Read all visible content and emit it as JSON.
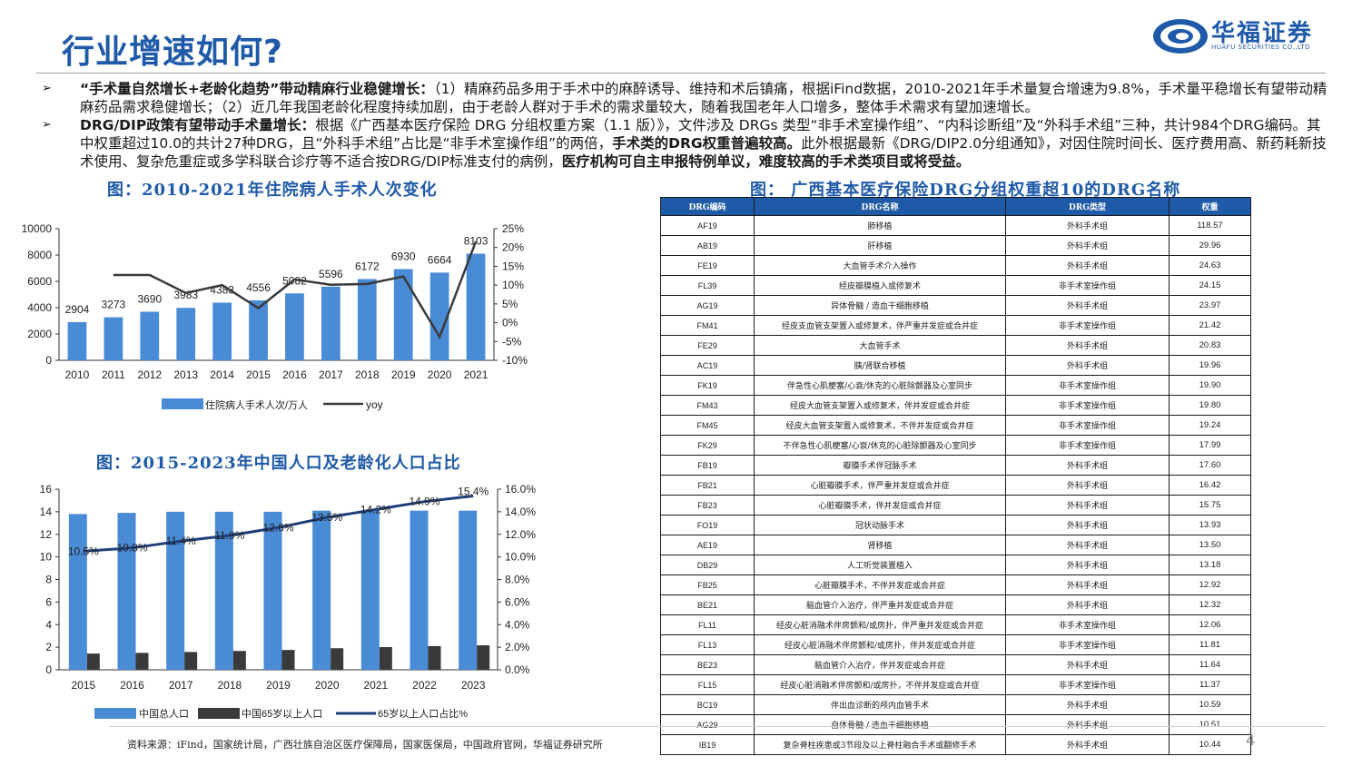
{
  "header": {
    "title": "行业增速如何?",
    "logo_cn": "华福证券",
    "logo_en": "HUAFU SECURITIES CO.,LTD"
  },
  "bullets": [
    {
      "symbol": "➢",
      "bold": "“手术量自然增长+老龄化趋势”带动精麻行业稳健增长：",
      "text": "（1）精麻药品多用于手术中的麻醉诱导、维持和术后镇痛，根据iFind数据，2010-2021年手术量复合增速为9.8%，手术量平稳增长有望带动精麻药品需求稳健增长；（2）近几年我国老龄化程度持续加剧，由于老龄人群对于手术的需求量较大，随着我国老年人口增多，整体手术需求有望加速增长。"
    },
    {
      "symbol": "➢",
      "bold": "DRG/DIP政策有望带动手术量增长：",
      "text1": "根据《广西基本医疗保险 DRG 分组权重方案（1.1 版）》，文件涉及 DRGs 类型“非手术室操作组”、“内科诊断组”及“外科手术组”三种，共计984个DRG编码。其中权重超过10.0的共计27种DRG，且“外科手术组”占比是“非手术室操作组”的两倍，",
      "bold2": "手术类的DRG权重普遍较高。",
      "text2": "此外根据最新《DRG/DIP2.0分组通知》，对因住院时间长、医疗费用高、新药耗新技术使用、复杂危重症或多学科联合诊疗等不适合按DRG/DIP标准支付的病例，",
      "bold3": "医疗机构可自主申报特例单议，难度较高的手术类项目或将受益。"
    }
  ],
  "chart1_title": "图：2010-2021年住院病人手术人次变化",
  "chart2_title": "图：2015-2023年中国人口及老龄化人口占比",
  "table_title": "图： 广西基本医疗保险DRG分组权重超10的DRG名称",
  "source": "资料来源：iFind，国家统计局，广西壮族自治区医疗保障局，国家医保局，中国政府官网，华福证券研究所",
  "page_number": "4",
  "colors": {
    "accent": "#1f5aa8",
    "bar": "#4a8bd6",
    "dark_bar": "#3a3a3a",
    "line": "#1f3f7a"
  },
  "chart_data": [
    {
      "type": "bar",
      "categories": [
        "2010",
        "2011",
        "2012",
        "2013",
        "2014",
        "2015",
        "2016",
        "2017",
        "2018",
        "2019",
        "2020",
        "2021"
      ],
      "series": [
        {
          "name": "住院病人手术人次/万人",
          "values": [
            2904,
            3273,
            3690,
            3983,
            4383,
            4556,
            5082,
            5596,
            6172,
            6930,
            6664,
            8103
          ]
        },
        {
          "name": "yoy",
          "type": "line",
          "axis": "right",
          "values": [
            null,
            12.7,
            12.7,
            7.9,
            10.0,
            3.9,
            11.5,
            10.1,
            10.3,
            12.3,
            -3.8,
            21.6
          ]
        }
      ],
      "left_ticks": [
        "0",
        "2000",
        "4000",
        "6000",
        "8000",
        "10000"
      ],
      "right_ticks": [
        "-10%",
        "-5%",
        "0%",
        "5%",
        "10%",
        "15%",
        "20%",
        "25%"
      ],
      "ylim": [
        0,
        10000
      ],
      "y2lim": [
        -10,
        25
      ],
      "legend_position": "bottom"
    },
    {
      "type": "bar",
      "categories": [
        "2015",
        "2016",
        "2017",
        "2018",
        "2019",
        "2020",
        "2021",
        "2022",
        "2023"
      ],
      "series": [
        {
          "name": "中国总人口",
          "values": [
            13.8,
            13.9,
            14.0,
            14.0,
            14.0,
            14.1,
            14.1,
            14.1,
            14.1
          ]
        },
        {
          "name": "中国65岁以上人口",
          "values": [
            1.44,
            1.5,
            1.58,
            1.67,
            1.76,
            1.91,
            2.01,
            2.1,
            2.17
          ]
        },
        {
          "name": "65岁以上人口占比%",
          "type": "line",
          "axis": "right",
          "values": [
            10.5,
            10.8,
            11.4,
            11.9,
            12.6,
            13.5,
            14.2,
            14.9,
            15.4
          ],
          "labels": [
            "10.5%",
            "10.8%",
            "11.4%",
            "11.9%",
            "12.6%",
            "13.5%",
            "14.2%",
            "14.9%",
            "15.4%"
          ]
        }
      ],
      "left_ticks": [
        "0",
        "2",
        "4",
        "6",
        "8",
        "10",
        "12",
        "14",
        "16"
      ],
      "right_ticks": [
        "0.0%",
        "2.0%",
        "4.0%",
        "6.0%",
        "8.0%",
        "10.0%",
        "12.0%",
        "14.0%",
        "16.0%"
      ],
      "ylim": [
        0,
        16
      ],
      "y2lim": [
        0,
        16
      ],
      "legend_position": "bottom"
    },
    {
      "type": "table",
      "headers": [
        "DRG编码",
        "DRG名称",
        "DRG类型",
        "权重"
      ],
      "rows": [
        [
          "AF19",
          "肺移植",
          "外科手术组",
          "118.57"
        ],
        [
          "AB19",
          "肝移植",
          "外科手术组",
          "29.96"
        ],
        [
          "FE19",
          "大血管手术介入操作",
          "外科手术组",
          "24.63"
        ],
        [
          "FL39",
          "经皮瓣膜植入或修复术",
          "非手术室操作组",
          "24.15"
        ],
        [
          "AG19",
          "异体骨髓 / 造血干细胞移植",
          "外科手术组",
          "23.97"
        ],
        [
          "FM41",
          "经皮支血管支架置入或修复术，伴严重并发症或合并症",
          "非手术室操作组",
          "21.42"
        ],
        [
          "FE29",
          "大血管手术",
          "外科手术组",
          "20.83"
        ],
        [
          "AC19",
          "胰/肾联合移植",
          "外科手术组",
          "19.96"
        ],
        [
          "FK19",
          "伴急性心肌梗塞/心衰/休克的心脏除颤器及心室同步",
          "非手术室操作组",
          "19.90"
        ],
        [
          "FM43",
          "经皮大血管支架置入或修复术，伴并发症或合并症",
          "非手术室操作组",
          "19.80"
        ],
        [
          "FM45",
          "经皮大血管支架置入或修复术，不伴并发症或合并症",
          "非手术室操作组",
          "19.24"
        ],
        [
          "FK29",
          "不伴急性心肌梗塞/心衰/休克的心脏除颤器及心室同步",
          "非手术室操作组",
          "17.99"
        ],
        [
          "FB19",
          "瓣膜手术伴冠脉手术",
          "外科手术组",
          "17.60"
        ],
        [
          "FB21",
          "心脏瓣膜手术，伴严重并发症或合并症",
          "外科手术组",
          "16.42"
        ],
        [
          "FB23",
          "心脏瓣膜手术，伴并发症或合并症",
          "外科手术组",
          "15.75"
        ],
        [
          "FO19",
          "冠状动脉手术",
          "外科手术组",
          "13.93"
        ],
        [
          "AE19",
          "肾移植",
          "外科手术组",
          "13.50"
        ],
        [
          "DB29",
          "人工听觉装置植入",
          "外科手术组",
          "13.18"
        ],
        [
          "FB25",
          "心脏瓣膜手术，不伴并发症或合并症",
          "外科手术组",
          "12.92"
        ],
        [
          "BE21",
          "脑血管介入治疗，伴严重并发症或合并症",
          "外科手术组",
          "12.32"
        ],
        [
          "FL11",
          "经皮心脏消融术伴房颤和/或房扑，伴严重并发症或合并症",
          "非手术室操作组",
          "12.06"
        ],
        [
          "FL13",
          "经皮心脏消融术伴房颤和/或房扑，伴并发症或合并症",
          "非手术室操作组",
          "11.81"
        ],
        [
          "BE23",
          "脑血管介入治疗，伴并发症或合并症",
          "外科手术组",
          "11.64"
        ],
        [
          "FL15",
          "经皮心脏消融术伴房颤和/或房扑，不伴并发症或合并症",
          "非手术室操作组",
          "11.37"
        ],
        [
          "BC19",
          "伴出血诊断的颅内血管手术",
          "外科手术组",
          "10.59"
        ],
        [
          "AG29",
          "自体骨髓 / 造血干细胞移植",
          "外科手术组",
          "10.51"
        ],
        [
          "IB19",
          "复杂脊柱疾患或3节段及以上脊柱融合手术或翻修手术",
          "外科手术组",
          "10.44"
        ]
      ]
    }
  ]
}
